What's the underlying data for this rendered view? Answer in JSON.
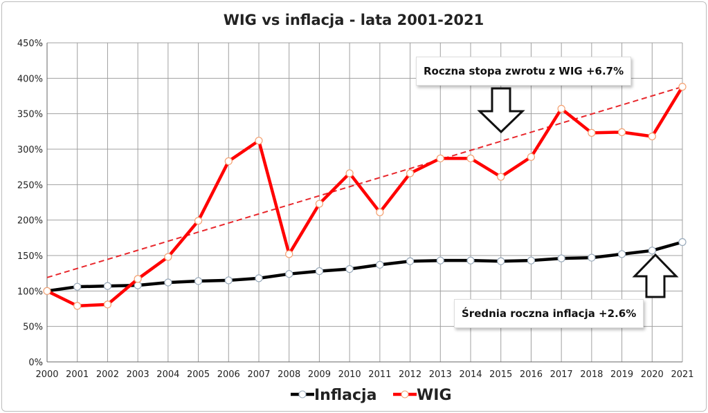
{
  "chart_data": {
    "type": "line",
    "title": "WIG vs inflacja - lata 2001-2021",
    "x": [
      2000,
      2001,
      2002,
      2003,
      2004,
      2005,
      2006,
      2007,
      2008,
      2009,
      2010,
      2011,
      2012,
      2013,
      2014,
      2015,
      2016,
      2017,
      2018,
      2019,
      2020,
      2021
    ],
    "ylim": [
      0,
      450
    ],
    "yticks": [
      "0%",
      "50%",
      "100%",
      "150%",
      "200%",
      "250%",
      "300%",
      "350%",
      "400%",
      "450%"
    ],
    "grid": true,
    "legend_position": "bottom",
    "series": [
      {
        "name": "Inflacja",
        "color": "#000000",
        "values": [
          100,
          106,
          107,
          108,
          112,
          114,
          115,
          118,
          124,
          128,
          131,
          137,
          142,
          143,
          143,
          142,
          143,
          146,
          147,
          152,
          157,
          169
        ]
      },
      {
        "name": "WIG",
        "color": "#ff0000",
        "values": [
          100,
          79,
          81,
          117,
          148,
          199,
          283,
          312,
          152,
          223,
          266,
          211,
          266,
          287,
          287,
          261,
          289,
          357,
          323,
          324,
          318,
          388
        ]
      }
    ],
    "trendline": {
      "series": "WIG",
      "color": "#e8262b",
      "style": "dashed",
      "start": [
        2000,
        119
      ],
      "end": [
        2021,
        388
      ]
    },
    "annotations": [
      {
        "text": "Roczna stopa zwrotu z WIG  +6.7%",
        "arrow": "down"
      },
      {
        "text": "Średnia roczna inflacja +2.6%",
        "arrow": "up"
      }
    ]
  }
}
